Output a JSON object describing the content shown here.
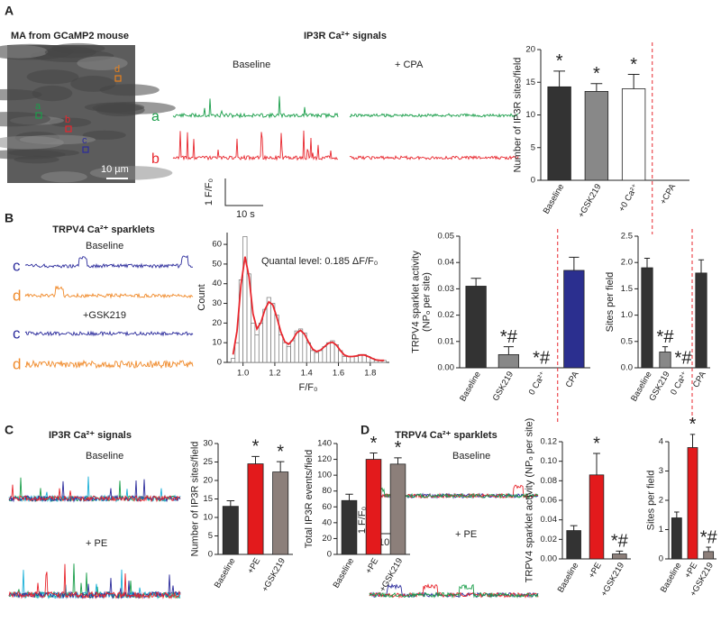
{
  "figure": {
    "A": {
      "letter": "A",
      "image_title": "MA from GCaMP2 mouse",
      "scale": "10 µm",
      "rois": [
        {
          "label": "a",
          "color": "#1a9e4a"
        },
        {
          "label": "b",
          "color": "#e8262d"
        },
        {
          "label": "c",
          "color": "#2c2c9c"
        },
        {
          "label": "d",
          "color": "#e8821e"
        }
      ],
      "title": "IP3R Ca²⁺ signals",
      "conditions": [
        "Baseline",
        "+ CPA"
      ],
      "traces": [
        {
          "label": "a",
          "color": "#1a9e4a"
        },
        {
          "label": "b",
          "color": "#e8262d"
        }
      ],
      "scale_y": "1 F/F₀",
      "scale_x": "10 s"
    },
    "B": {
      "letter": "B",
      "title": "TRPV4 Ca²⁺ sparklets",
      "conditions": [
        "Baseline",
        "+GSK219"
      ],
      "traces": [
        {
          "label": "c",
          "color": "#2c2c9c"
        },
        {
          "label": "d",
          "color": "#f08a2a"
        }
      ]
    },
    "C": {
      "letter": "C",
      "title": "IP3R Ca²⁺ signals",
      "conditions": [
        "Baseline",
        "+ PE"
      ],
      "colors": [
        "#1a9e4a",
        "#1ab0d8",
        "#2c2c9c",
        "#e8262d"
      ]
    },
    "D": {
      "letter": "D",
      "title": "TRPV4 Ca²⁺ sparklets",
      "conditions": [
        "Baseline",
        "+ PE"
      ],
      "colors": [
        "#2c2c9c",
        "#e8262d",
        "#1a9e4a"
      ],
      "scale_y": "1 F/F₀",
      "scale_x": "10 s"
    }
  },
  "chart_data": [
    {
      "type": "bar",
      "ylabel": [
        "Number of IP3R sites/field"
      ],
      "categories": [
        "Baseline",
        "+GSK219",
        "+0 Ca²⁺",
        "+CPA"
      ],
      "values": [
        14.3,
        13.6,
        14.0,
        0
      ],
      "errors": [
        2.4,
        1.2,
        2.2,
        null
      ],
      "colors": [
        "#333333",
        "#888888",
        "#ffffff",
        "#ffffff"
      ],
      "markers": [
        "*",
        "*",
        "*",
        null
      ],
      "separator_after": 2,
      "ylim": [
        0,
        20
      ],
      "yticks": [
        0,
        5,
        10,
        15,
        20
      ]
    },
    {
      "type": "histogram",
      "annotation": "Quantal level: 0.185 ΔF/F₀",
      "xlabel": "F/F₀",
      "ylabel": "Count",
      "bins": [
        0.925,
        0.95,
        0.975,
        1.0,
        1.025,
        1.05,
        1.075,
        1.1,
        1.125,
        1.15,
        1.175,
        1.2,
        1.225,
        1.25,
        1.275,
        1.3,
        1.325,
        1.35,
        1.375,
        1.4,
        1.425,
        1.45,
        1.475,
        1.5,
        1.525,
        1.55,
        1.575,
        1.6,
        1.625,
        1.65,
        1.675,
        1.7,
        1.725,
        1.75,
        1.775,
        1.8,
        1.825,
        1.85,
        1.875,
        1.9
      ],
      "values": [
        2,
        10,
        42,
        64,
        45,
        20,
        14,
        20,
        27,
        33,
        30,
        24,
        14,
        10,
        8,
        11,
        16,
        17,
        15,
        10,
        6,
        5,
        6,
        8,
        10,
        11,
        9,
        6,
        3,
        3,
        3,
        3,
        4,
        4,
        3,
        2,
        1,
        1,
        1
      ],
      "color": "#ffffff",
      "fit_color": "#e8262d",
      "xlim": [
        0.9,
        1.92
      ],
      "xticks": [
        {
          "value": 1.0,
          "label": "1.0"
        },
        1.2,
        1.4,
        1.6,
        1.8
      ],
      "ylim": [
        0,
        66
      ],
      "yticks": [
        0,
        10,
        20,
        30,
        40,
        50,
        60
      ]
    },
    {
      "type": "bar",
      "ylabel": [
        "TRPV4 sparklet activity",
        "(NPₒ per site)"
      ],
      "categories": [
        "Baseline",
        "GSK219",
        "0 Ca²⁺",
        "CPA"
      ],
      "values": [
        0.031,
        0.005,
        0,
        0.037
      ],
      "errors": [
        0.003,
        0.003,
        null,
        0.005
      ],
      "colors": [
        "#333333",
        "#888888",
        "#888888",
        "#2b2f8f"
      ],
      "markers": [
        null,
        "*#",
        "*#",
        null
      ],
      "separator_after": 2,
      "ylim": [
        0,
        0.05
      ],
      "yticks": [
        {
          "value": 0,
          "label": "0.00"
        },
        {
          "value": 0.01,
          "label": "0.01"
        },
        {
          "value": 0.02,
          "label": "0.02"
        },
        {
          "value": 0.03,
          "label": "0.03"
        },
        {
          "value": 0.04,
          "label": "0.04"
        },
        {
          "value": 0.05,
          "label": "0.05"
        }
      ]
    },
    {
      "type": "bar",
      "ylabel": [
        "Sites per field"
      ],
      "categories": [
        "Baseline",
        "GSK219",
        "0 Ca²⁺",
        "CPA"
      ],
      "values": [
        1.9,
        0.3,
        0,
        1.8
      ],
      "errors": [
        0.18,
        0.1,
        null,
        0.25
      ],
      "colors": [
        "#333333",
        "#888888",
        "#888888",
        "#333333"
      ],
      "markers": [
        null,
        "*#",
        "*#",
        null
      ],
      "separator_after": 2,
      "ylim": [
        0,
        2.5
      ],
      "yticks": [
        {
          "value": 0,
          "label": "0.0"
        },
        0.5,
        {
          "value": 1,
          "label": "1.0"
        },
        1.5,
        {
          "value": 2,
          "label": "2.0"
        },
        2.5
      ]
    },
    {
      "type": "bar",
      "ylabel": [
        "Number of IP3R sites/field"
      ],
      "categories": [
        "Baseline",
        "+PE",
        "+GSK219"
      ],
      "values": [
        13,
        24.5,
        22.3
      ],
      "errors": [
        1.5,
        2,
        2.8
      ],
      "colors": [
        "#333333",
        "#e31a1c",
        "#8c7f7a"
      ],
      "markers": [
        null,
        "*",
        "*"
      ],
      "ylim": [
        0,
        30
      ],
      "yticks": [
        0,
        5,
        10,
        15,
        20,
        25,
        30
      ]
    },
    {
      "type": "bar",
      "ylabel": [
        "Total IP3R events/field"
      ],
      "categories": [
        "Baseline",
        "+PE",
        "+GSK219"
      ],
      "values": [
        68,
        120,
        114
      ],
      "errors": [
        8,
        8,
        8
      ],
      "colors": [
        "#333333",
        "#e31a1c",
        "#8c7f7a"
      ],
      "markers": [
        null,
        "*",
        "*"
      ],
      "ylim": [
        0,
        140
      ],
      "yticks": [
        0,
        20,
        40,
        60,
        80,
        100,
        120,
        140
      ]
    },
    {
      "type": "bar",
      "ylabel": [
        "TRPV4 sparklet activity (NPₒ per site)"
      ],
      "categories": [
        "Baseline",
        "+PE",
        "+GSK219"
      ],
      "values": [
        0.029,
        0.086,
        0.005
      ],
      "errors": [
        0.005,
        0.022,
        0.003
      ],
      "colors": [
        "#333333",
        "#e31a1c",
        "#8c7f7a"
      ],
      "markers": [
        null,
        "*",
        "*#"
      ],
      "ylim": [
        0,
        0.12
      ],
      "yticks": [
        {
          "value": 0,
          "label": "0.00"
        },
        {
          "value": 0.02,
          "label": "0.02"
        },
        {
          "value": 0.04,
          "label": "0.04"
        },
        {
          "value": 0.06,
          "label": "0.06"
        },
        {
          "value": 0.08,
          "label": "0.08"
        },
        {
          "value": 0.1,
          "label": "0.10"
        },
        {
          "value": 0.12,
          "label": "0.12"
        }
      ]
    },
    {
      "type": "bar",
      "ylabel": [
        "Sites per field"
      ],
      "categories": [
        "Baseline",
        "+PE",
        "+GSK219"
      ],
      "values": [
        1.4,
        3.8,
        0.25
      ],
      "errors": [
        0.2,
        0.45,
        0.15
      ],
      "colors": [
        "#333333",
        "#e31a1c",
        "#8c7f7a"
      ],
      "markers": [
        null,
        "*",
        "*#"
      ],
      "ylim": [
        0,
        4
      ],
      "yticks": [
        0,
        1,
        2,
        3,
        4
      ]
    }
  ]
}
